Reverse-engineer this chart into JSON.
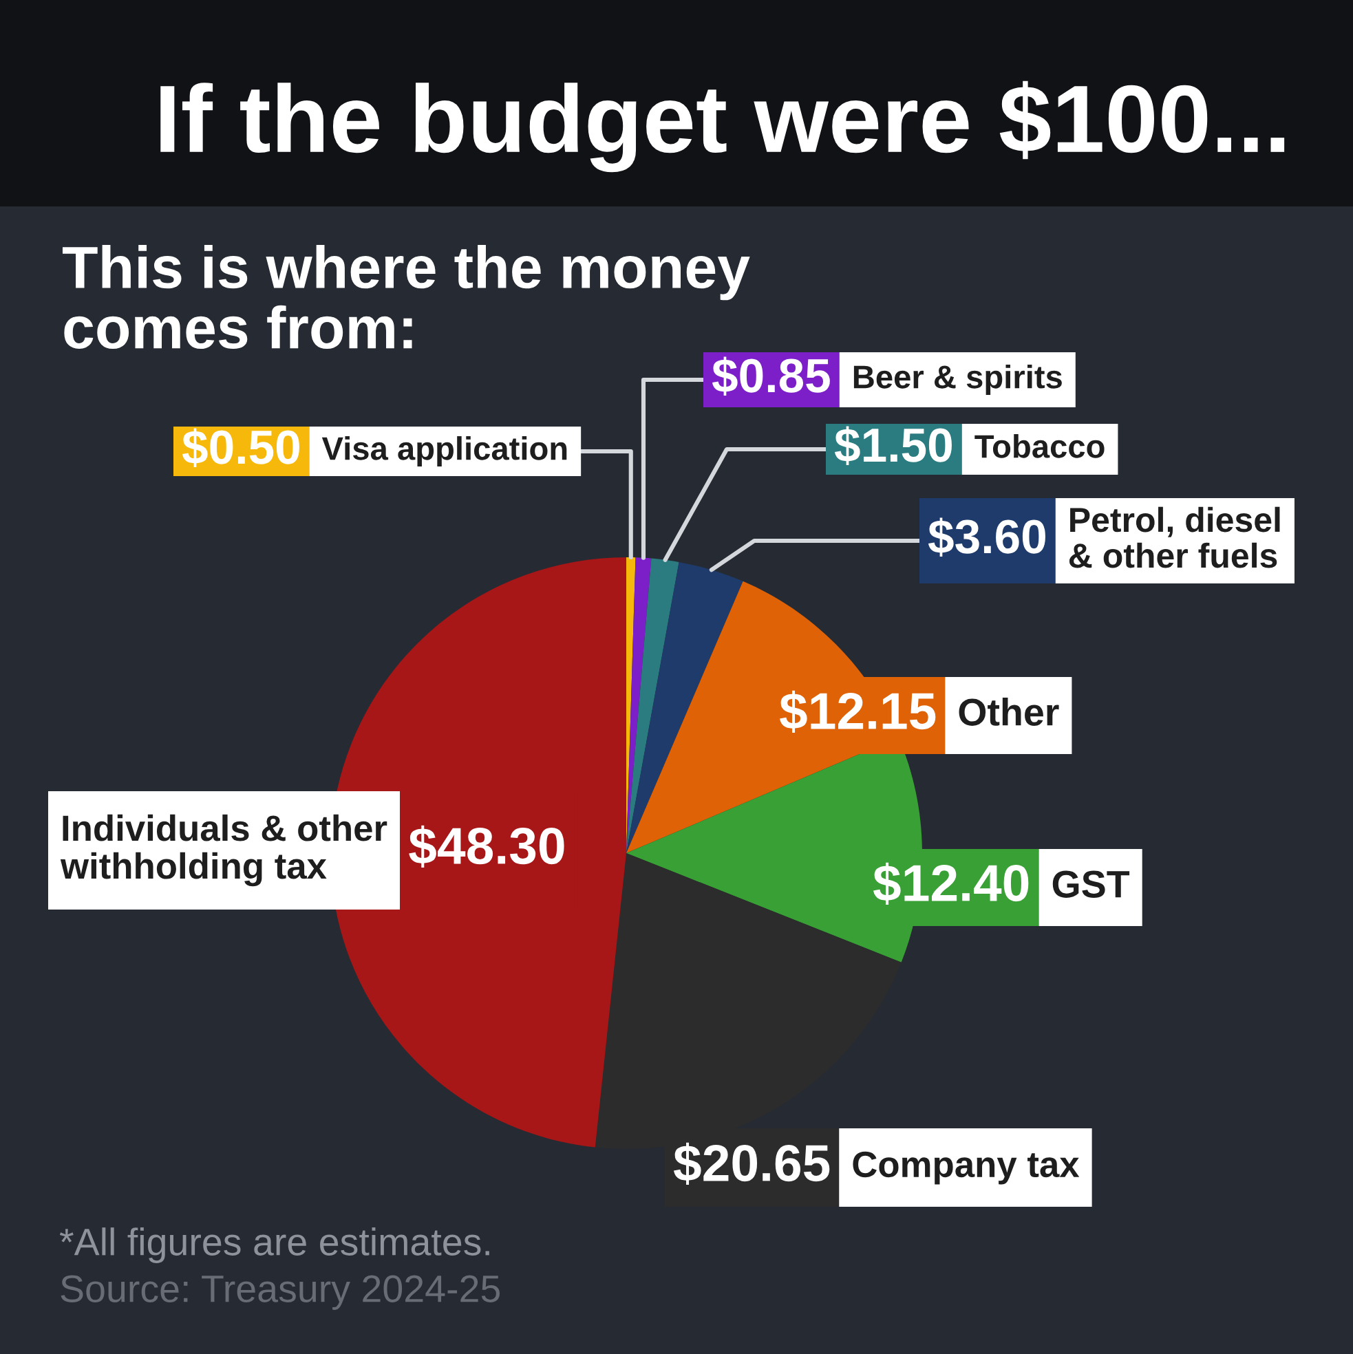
{
  "chart_data": {
    "type": "pie",
    "title": "If the budget were $100...",
    "subtitle": "This is where the money comes from:",
    "categories": [
      "Visa application",
      "Beer & spirits",
      "Tobacco",
      "Petrol, diesel & other fuels",
      "Other",
      "GST",
      "Company tax",
      "Individuals & other withholding tax"
    ],
    "values": [
      0.5,
      0.85,
      1.5,
      3.6,
      12.15,
      12.4,
      20.65,
      48.3
    ],
    "colors": [
      "#f6b80a",
      "#7d1fc9",
      "#2b7c80",
      "#1f3b6b",
      "#df6206",
      "#38a035",
      "#2c2c2c",
      "#a71717"
    ],
    "value_labels": [
      "$0.50",
      "$0.85",
      "$1.50",
      "$3.60",
      "$12.15",
      "$12.40",
      "$20.65",
      "$48.30"
    ],
    "legend": "right",
    "annotations": [
      "*All figures are estimates.",
      "Source: Treasury 2024-25"
    ]
  }
}
